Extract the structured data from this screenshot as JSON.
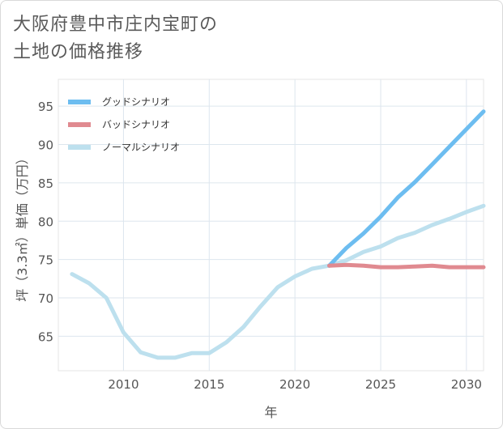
{
  "chart_data": {
    "type": "line",
    "title_lines": [
      "大阪府豊中市庄内宝町の",
      "土地の価格推移"
    ],
    "xlabel": "年",
    "ylabel": "坪（3.3㎡）単価（万円）",
    "xlim": [
      2006.2,
      2031
    ],
    "ylim": [
      60.5,
      98.5
    ],
    "x_ticks": [
      2010,
      2015,
      2020,
      2025,
      2030
    ],
    "y_ticks": [
      65,
      70,
      75,
      80,
      85,
      90,
      95
    ],
    "grid": true,
    "legend_position": "top-left",
    "series": [
      {
        "name": "グッドシナリオ",
        "color": "#6dbdf0",
        "x": [
          2022,
          2023,
          2024,
          2025,
          2026,
          2027,
          2028,
          2029,
          2030,
          2031
        ],
        "y": [
          74.2,
          76.5,
          78.4,
          80.6,
          83.1,
          85.1,
          87.4,
          89.7,
          92.0,
          94.3
        ]
      },
      {
        "name": "バッドシナリオ",
        "color": "#e08a90",
        "x": [
          2022,
          2023,
          2024,
          2025,
          2026,
          2027,
          2028,
          2029,
          2030,
          2031
        ],
        "y": [
          74.2,
          74.3,
          74.2,
          74.0,
          74.0,
          74.1,
          74.2,
          74.0,
          74.0,
          74.0
        ]
      },
      {
        "name": "ノーマルシナリオ",
        "color": "#bde0ee",
        "x": [
          2007,
          2008,
          2009,
          2010,
          2011,
          2012,
          2013,
          2014,
          2015,
          2016,
          2017,
          2018,
          2019,
          2020,
          2021,
          2022,
          2023,
          2024,
          2025,
          2026,
          2027,
          2028,
          2029,
          2030,
          2031
        ],
        "y": [
          73.1,
          71.9,
          70.0,
          65.5,
          62.9,
          62.2,
          62.2,
          62.8,
          62.8,
          64.2,
          66.2,
          68.9,
          71.4,
          72.8,
          73.8,
          74.2,
          74.9,
          76.0,
          76.7,
          77.8,
          78.5,
          79.5,
          80.3,
          81.2,
          82.0
        ]
      }
    ]
  }
}
